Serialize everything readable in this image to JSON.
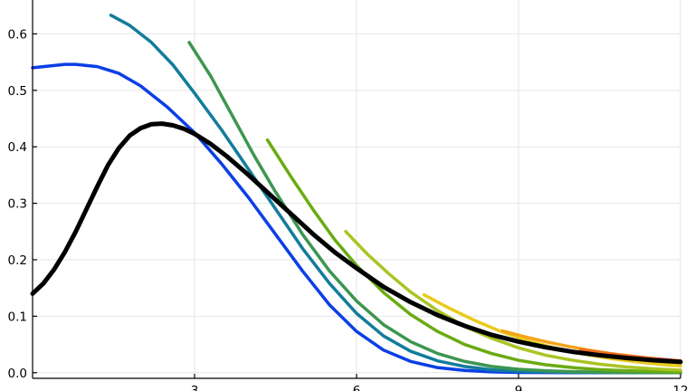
{
  "chart_data": {
    "type": "line",
    "title": "",
    "xlabel": "",
    "ylabel": "",
    "xlim": [
      0,
      12
    ],
    "ylim": [
      -0.01,
      0.66
    ],
    "x_ticks": [
      3,
      6,
      9,
      12
    ],
    "x_tick_labels": [
      "3",
      "6",
      "9",
      "12"
    ],
    "y_ticks": [
      0.0,
      0.1,
      0.2,
      0.3,
      0.4,
      0.5,
      0.6
    ],
    "y_tick_labels": [
      "0.0",
      "0.1",
      "0.2",
      "0.3",
      "0.4",
      "0.5",
      "0.6"
    ],
    "grid": true,
    "legend": "none",
    "series": [
      {
        "color": "#0a3fe6",
        "width": 3.5,
        "x": [
          0.0,
          0.6,
          0.8,
          1.2,
          1.6,
          2.0,
          2.5,
          3.0,
          3.5,
          4.0,
          4.5,
          5.0,
          5.5,
          6.0,
          6.5,
          7.0,
          7.5,
          8.0,
          8.5,
          9.0,
          9.5,
          10.0,
          10.5,
          11.0,
          12.0
        ],
        "y": [
          0.54,
          0.546,
          0.546,
          0.542,
          0.53,
          0.508,
          0.47,
          0.425,
          0.37,
          0.31,
          0.245,
          0.18,
          0.12,
          0.073,
          0.04,
          0.02,
          0.009,
          0.004,
          0.0015,
          0.0005,
          0.0002,
          0.0001,
          0.0,
          0.0,
          0.0
        ]
      },
      {
        "color": "#127c9c",
        "width": 3.5,
        "x": [
          1.45,
          1.8,
          2.2,
          2.6,
          3.0,
          3.5,
          4.0,
          4.5,
          5.0,
          5.5,
          6.0,
          6.5,
          7.0,
          7.5,
          8.0,
          8.5,
          9.0,
          9.5,
          10.0,
          10.5,
          11.0,
          12.0
        ],
        "y": [
          0.633,
          0.615,
          0.585,
          0.545,
          0.495,
          0.43,
          0.36,
          0.29,
          0.22,
          0.158,
          0.105,
          0.065,
          0.038,
          0.021,
          0.011,
          0.005,
          0.0025,
          0.0012,
          0.0005,
          0.0002,
          0.0001,
          0.0
        ]
      },
      {
        "color": "#3c9650",
        "width": 3.5,
        "x": [
          2.9,
          3.3,
          3.7,
          4.1,
          4.5,
          5.0,
          5.5,
          6.0,
          6.5,
          7.0,
          7.5,
          8.0,
          8.5,
          9.0,
          9.5,
          10.0,
          10.5,
          11.0,
          12.0
        ],
        "y": [
          0.585,
          0.525,
          0.455,
          0.385,
          0.32,
          0.245,
          0.18,
          0.127,
          0.085,
          0.055,
          0.034,
          0.02,
          0.011,
          0.006,
          0.0035,
          0.0018,
          0.0009,
          0.0004,
          0.0001
        ]
      },
      {
        "color": "#6aab12",
        "width": 3.5,
        "x": [
          4.35,
          4.8,
          5.2,
          5.6,
          6.0,
          6.5,
          7.0,
          7.5,
          8.0,
          8.5,
          9.0,
          9.5,
          10.0,
          10.5,
          11.0,
          11.5,
          12.0
        ],
        "y": [
          0.412,
          0.345,
          0.288,
          0.235,
          0.19,
          0.142,
          0.103,
          0.073,
          0.05,
          0.034,
          0.022,
          0.014,
          0.009,
          0.0055,
          0.0035,
          0.002,
          0.0012
        ]
      },
      {
        "color": "#aac423",
        "width": 3.5,
        "x": [
          5.8,
          6.2,
          6.6,
          7.0,
          7.5,
          8.0,
          8.5,
          9.0,
          9.5,
          10.0,
          10.5,
          11.0,
          11.5,
          12.0
        ],
        "y": [
          0.25,
          0.21,
          0.175,
          0.143,
          0.11,
          0.082,
          0.061,
          0.044,
          0.031,
          0.022,
          0.015,
          0.01,
          0.0068,
          0.0045
        ]
      },
      {
        "color": "#e8cb1c",
        "width": 3.5,
        "x": [
          7.25,
          7.7,
          8.2,
          8.7,
          9.2,
          9.7,
          10.2,
          10.7,
          11.2,
          11.7,
          12.0
        ],
        "y": [
          0.138,
          0.115,
          0.092,
          0.072,
          0.056,
          0.043,
          0.033,
          0.025,
          0.019,
          0.014,
          0.012
        ]
      },
      {
        "color": "#f4a41a",
        "width": 3.5,
        "x": [
          8.7,
          9.1,
          9.5,
          9.9,
          10.3,
          10.7,
          11.1,
          11.5,
          12.0
        ],
        "y": [
          0.074,
          0.064,
          0.055,
          0.047,
          0.04,
          0.034,
          0.029,
          0.024,
          0.019
        ]
      },
      {
        "color": "#f06e1e",
        "width": 3.5,
        "x": [
          10.15,
          10.5,
          10.9,
          11.3,
          11.7,
          12.0
        ],
        "y": [
          0.041,
          0.036,
          0.031,
          0.027,
          0.023,
          0.021
        ]
      },
      {
        "color": "#e03a2a",
        "width": 3.5,
        "x": [
          11.6,
          11.8,
          12.0
        ],
        "y": [
          0.024,
          0.022,
          0.02
        ]
      },
      {
        "color": "#000000",
        "width": 5,
        "x": [
          0.0,
          0.2,
          0.4,
          0.6,
          0.8,
          1.0,
          1.2,
          1.4,
          1.6,
          1.8,
          2.0,
          2.2,
          2.4,
          2.6,
          2.8,
          3.0,
          3.3,
          3.6,
          4.0,
          4.4,
          4.8,
          5.2,
          5.6,
          6.0,
          6.5,
          7.0,
          7.5,
          8.0,
          8.5,
          9.0,
          9.5,
          10.0,
          10.5,
          11.0,
          11.5,
          12.0
        ],
        "y": [
          0.14,
          0.158,
          0.183,
          0.214,
          0.25,
          0.29,
          0.33,
          0.368,
          0.398,
          0.42,
          0.433,
          0.44,
          0.441,
          0.438,
          0.432,
          0.423,
          0.405,
          0.383,
          0.35,
          0.315,
          0.28,
          0.245,
          0.213,
          0.185,
          0.152,
          0.125,
          0.102,
          0.083,
          0.067,
          0.055,
          0.045,
          0.037,
          0.031,
          0.026,
          0.022,
          0.019
        ]
      }
    ]
  }
}
